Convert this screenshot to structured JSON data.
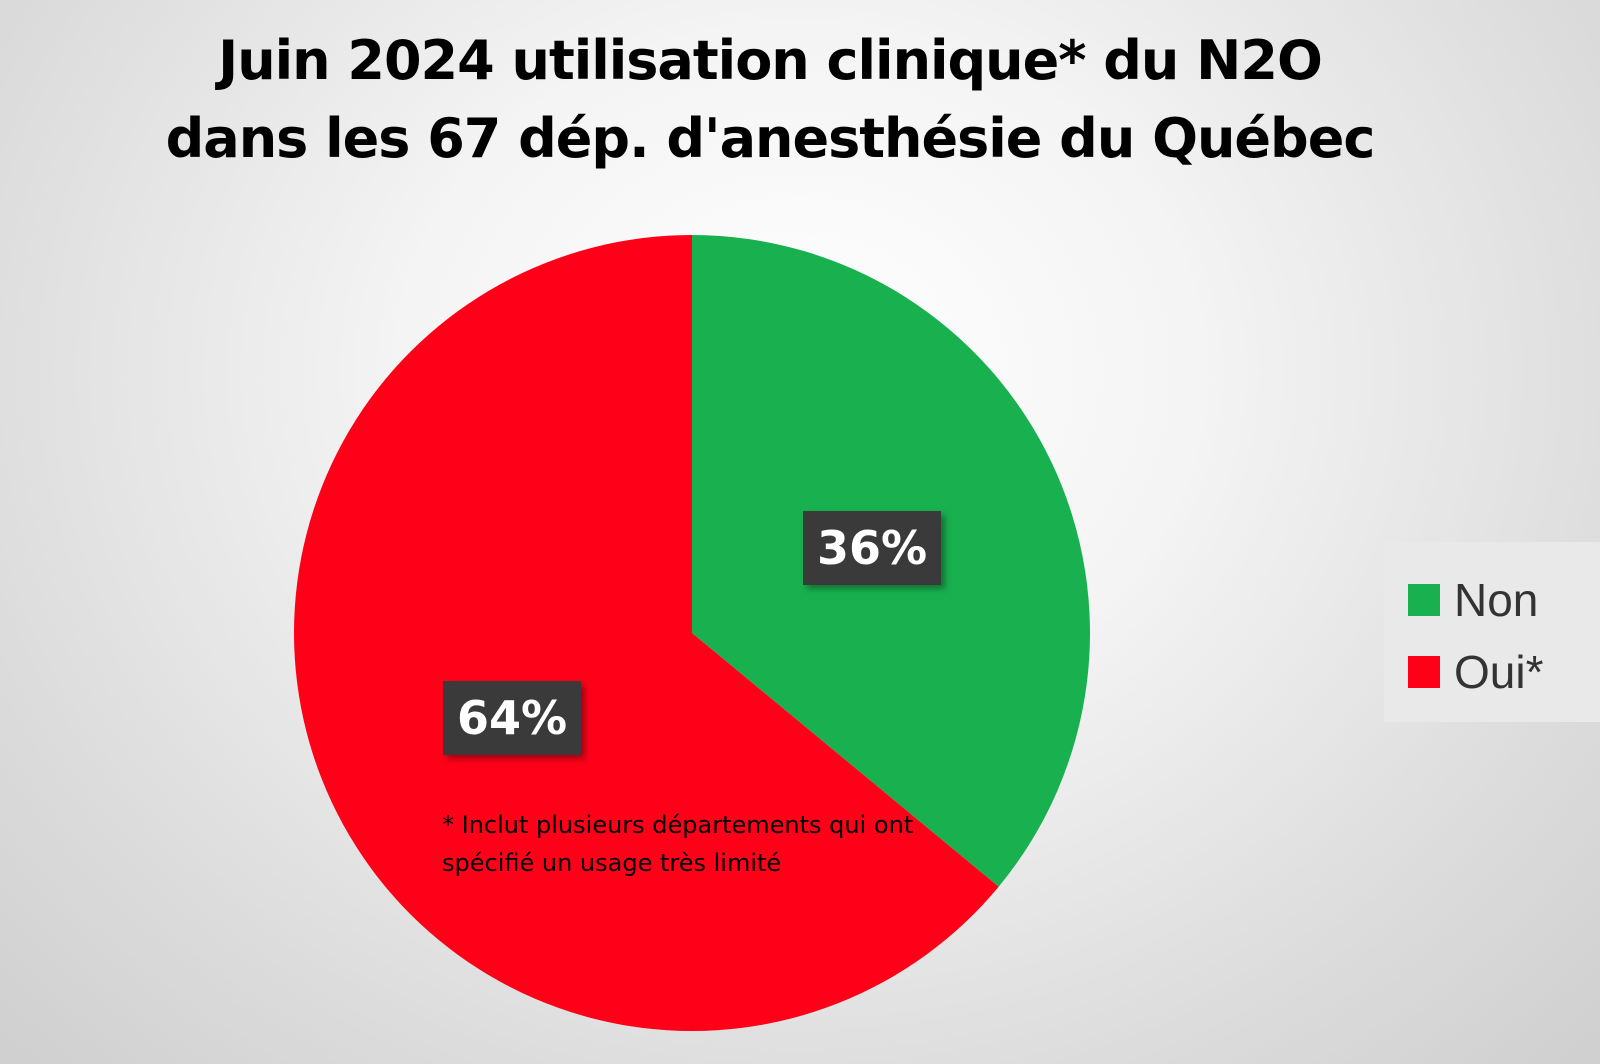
{
  "chart_data": {
    "type": "pie",
    "title": "Juin 2024 utilisation clinique* du N2O dans les 67 dép. d'anesthésie du Québec",
    "title_lines": [
      "Juin 2024 utilisation clinique* du N2O",
      "dans les 67 dép. d'anesthésie du Québec"
    ],
    "slices": [
      {
        "label": "Non",
        "value": 36,
        "display": "36%",
        "color": "#19b14f"
      },
      {
        "label": "Oui*",
        "value": 64,
        "display": "64%",
        "color": "#ff0019"
      }
    ],
    "legend_position": "right",
    "annotation": "* Inclut plusieurs départements qui ont spécifié un usage très limité"
  }
}
